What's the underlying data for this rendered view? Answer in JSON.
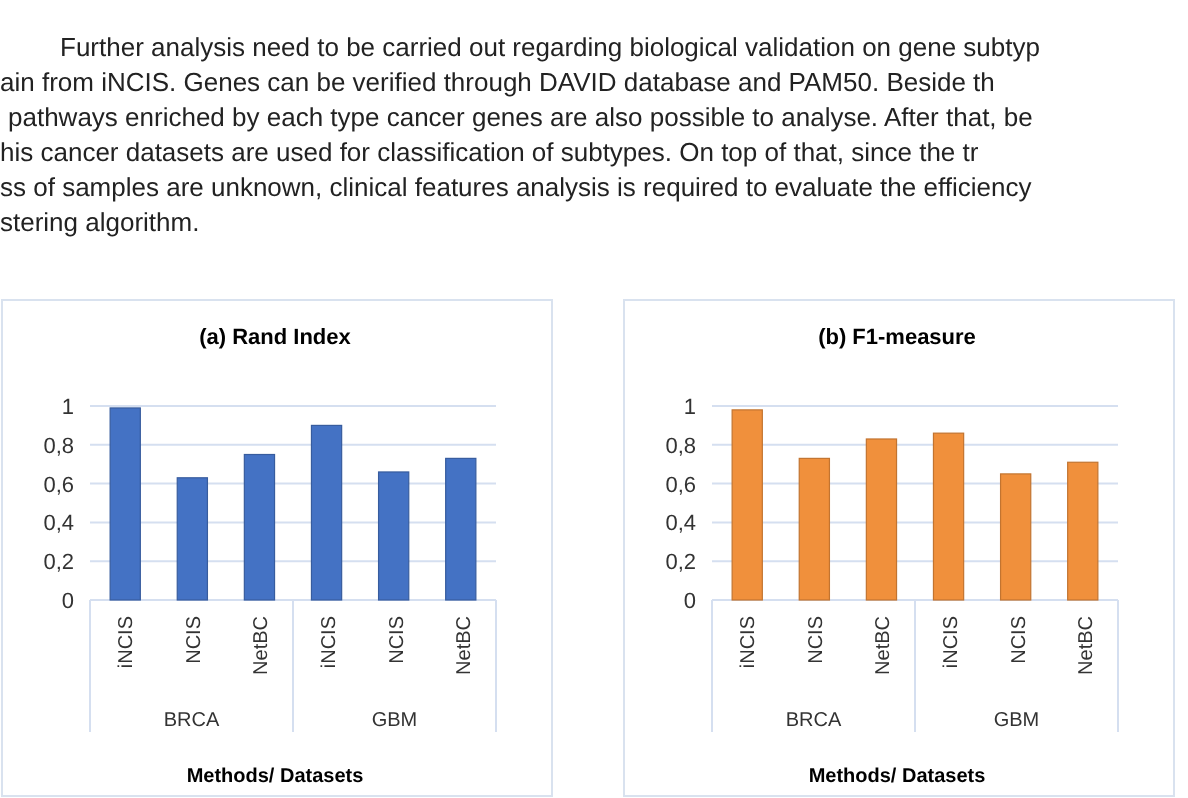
{
  "chart_data": [
    {
      "type": "other",
      "annotations": [
        "Further analysis need to be carried out regarding biological validation on gene subtyp",
        "ain from iNCIS. Genes can be verified through DAVID database and PAM50. Beside th",
        "pathways enriched by each type cancer genes are also possible to analyse. After that, be",
        "his cancer datasets are used for classification of subtypes. On top of that, since the tr",
        "ss of samples are unknown, clinical features analysis is required to evaluate the efficiency",
        "stering algorithm."
      ]
    },
    {
      "type": "bar",
      "title": "(a) Rand Index",
      "xlabel": "Methods/ Datasets",
      "categories": [
        "iNCIS",
        "NCIS",
        "NetBC",
        "iNCIS",
        "NCIS",
        "NetBC"
      ],
      "values": [
        0.99,
        0.63,
        0.75,
        0.9,
        0.66,
        0.73
      ],
      "color": "#4472c4",
      "ylim": [
        0,
        1
      ],
      "yticks": [
        {
          "value": 0,
          "label": "0"
        },
        {
          "value": 0.2,
          "label": "0,2"
        },
        {
          "value": 0.4,
          "label": "0,4"
        },
        {
          "value": 0.6,
          "label": "0,6"
        },
        {
          "value": 0.8,
          "label": "0,8"
        },
        {
          "value": 1,
          "label": "1"
        }
      ],
      "grid": "y",
      "annotations": [
        "BRCA",
        "GBM"
      ]
    },
    {
      "type": "bar",
      "title": "(b) F1-measure",
      "xlabel": "Methods/ Datasets",
      "categories": [
        "iNCIS",
        "NCIS",
        "NetBC",
        "iNCIS",
        "NCIS",
        "NetBC"
      ],
      "values": [
        0.98,
        0.73,
        0.83,
        0.86,
        0.65,
        0.71
      ],
      "color": "#f0903c",
      "ylim": [
        0,
        1
      ],
      "yticks": [
        {
          "value": 0,
          "label": "0"
        },
        {
          "value": 0.2,
          "label": "0,2"
        },
        {
          "value": 0.4,
          "label": "0,4"
        },
        {
          "value": 0.6,
          "label": "0,6"
        },
        {
          "value": 0.8,
          "label": "0,8"
        },
        {
          "value": 1,
          "label": "1"
        }
      ],
      "grid": "y",
      "annotations": [
        "BRCA",
        "GBM"
      ]
    }
  ]
}
